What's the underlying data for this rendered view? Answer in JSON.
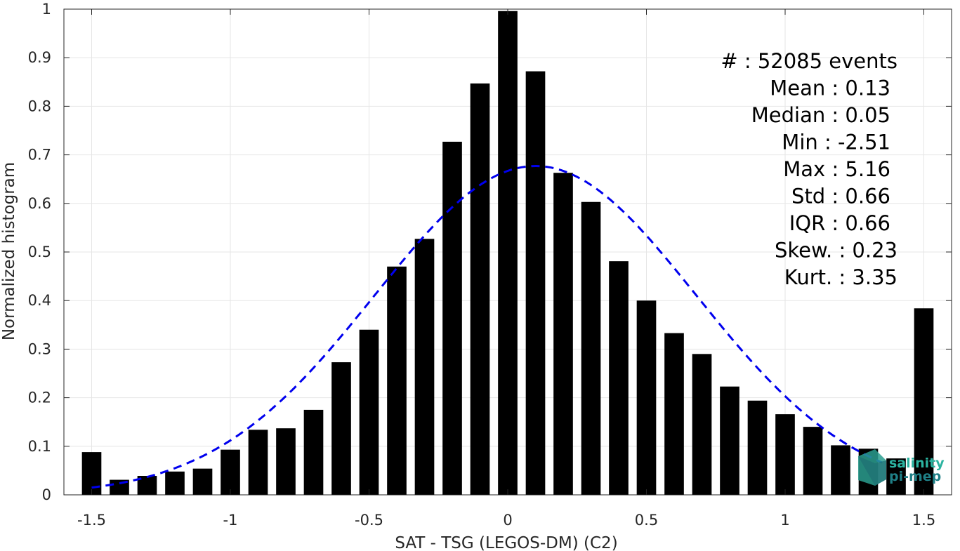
{
  "chart_data": {
    "type": "bar",
    "xlabel": "SAT - TSG (LEGOS-DM) (C2)",
    "ylabel": "Normalized histogram",
    "xlim": [
      -1.6,
      1.6
    ],
    "ylim": [
      0,
      1
    ],
    "xticks": [
      -1.5,
      -1,
      -0.5,
      0,
      0.5,
      1,
      1.5
    ],
    "xtick_labels": [
      "-1.5",
      "-1",
      "-0.5",
      "0",
      "0.5",
      "1",
      "1.5"
    ],
    "yticks": [
      0,
      0.1,
      0.2,
      0.3,
      0.4,
      0.5,
      0.6,
      0.7,
      0.8,
      0.9,
      1
    ],
    "ytick_labels": [
      "0",
      "0.1",
      "0.2",
      "0.3",
      "0.4",
      "0.5",
      "0.6",
      "0.7",
      "0.8",
      "0.9",
      "1"
    ],
    "grid": true,
    "bar_color": "#000000",
    "bar_width": 0.07,
    "x": [
      -1.5,
      -1.4,
      -1.3,
      -1.2,
      -1.1,
      -1.0,
      -0.9,
      -0.8,
      -0.7,
      -0.6,
      -0.5,
      -0.4,
      -0.3,
      -0.2,
      -0.1,
      0.0,
      0.1,
      0.2,
      0.3,
      0.4,
      0.5,
      0.6,
      0.7,
      0.8,
      0.9,
      1.0,
      1.1,
      1.2,
      1.3,
      1.4,
      1.5
    ],
    "values": [
      0.088,
      0.031,
      0.039,
      0.048,
      0.054,
      0.093,
      0.134,
      0.137,
      0.175,
      0.273,
      0.34,
      0.47,
      0.527,
      0.727,
      0.847,
      0.996,
      0.872,
      0.663,
      0.603,
      0.481,
      0.4,
      0.333,
      0.29,
      0.223,
      0.194,
      0.166,
      0.14,
      0.102,
      0.095,
      0.075,
      0.384
    ],
    "fit_curve": {
      "type": "gaussian",
      "mean": 0.1,
      "sigma": 0.58,
      "peak": 0.677,
      "x_range": [
        -1.5,
        1.35
      ],
      "color": "#0000ee",
      "style": "dashed"
    },
    "stats": [
      "#  : 52085 events",
      "Mean : 0.13",
      "Median : 0.05",
      "Min : -2.51",
      "Max : 5.16",
      "Std : 0.66",
      "IQR : 0.66",
      "Skew. : 0.23",
      "Kurt. : 3.35"
    ]
  },
  "logo": {
    "line1": "salinity",
    "line2": "pi-mep",
    "color1": "#2bb3a0",
    "color2": "#1f7f86"
  }
}
